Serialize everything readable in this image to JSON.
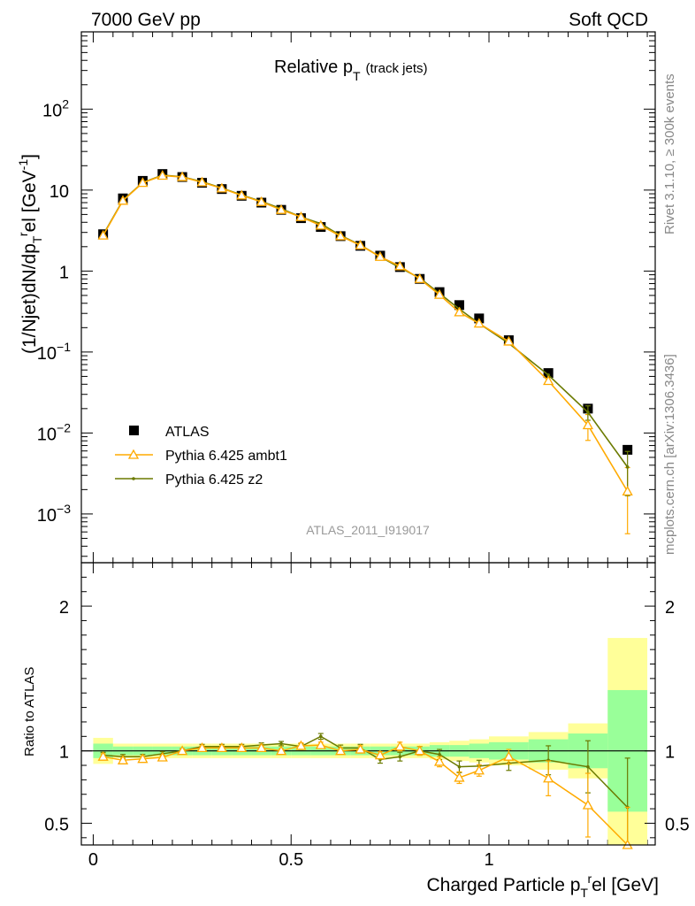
{
  "header": {
    "left": "7000 GeV pp",
    "right": "Soft QCD"
  },
  "side_labels": {
    "rivet": "Rivet 3.1.10, ≥ 300k events",
    "source": "mcplots.cern.ch [arXiv:1306.3436]"
  },
  "chart_data": {
    "type": "line",
    "title": "Relative p_T (track jets)",
    "title_main": "Relative p",
    "title_sub": "T",
    "title_suffix": "(track jets)",
    "watermark": "ATLAS_2011_I919017",
    "xlabel": "Charged Particle p_T^rel [GeV]",
    "xlabel_main": "Charged Particle p",
    "xlabel_sub": "T",
    "xlabel_sup": "r",
    "xlabel_suffix": "el [GeV]",
    "ylabel": "(1/Njet)dN/dp_T^rel [GeV^-1]",
    "ylabel_main": "(1/Njet)dN/dp",
    "ylabel_sub": "T",
    "ylabel_sup": "r",
    "ylabel_suffix": "el [GeV",
    "ylabel_unit_sup": "-1",
    "ylabel_close": "]",
    "ratio_ylabel": "Ratio to ATLAS",
    "xlim": [
      -0.03,
      1.42
    ],
    "ylim_log": [
      0.00025,
      900
    ],
    "ratio_ylim": [
      0.35,
      2.3
    ],
    "x_ticks": [
      {
        "v": 0,
        "label": "0"
      },
      {
        "v": 0.5,
        "label": "0.5"
      },
      {
        "v": 1,
        "label": "1"
      }
    ],
    "y_ticks": [
      {
        "v": 0.001,
        "base": "10",
        "exp": "−3"
      },
      {
        "v": 0.01,
        "base": "10",
        "exp": "−2"
      },
      {
        "v": 0.1,
        "base": "10",
        "exp": "−1"
      },
      {
        "v": 1,
        "base": "1",
        "exp": ""
      },
      {
        "v": 10,
        "base": "10",
        "exp": ""
      },
      {
        "v": 100,
        "base": "10",
        "exp": "2"
      }
    ],
    "ratio_y_ticks": [
      {
        "v": 0.5,
        "label": "0.5"
      },
      {
        "v": 1,
        "label": "1"
      },
      {
        "v": 2,
        "label": "2"
      }
    ],
    "x": [
      0.025,
      0.075,
      0.125,
      0.175,
      0.225,
      0.275,
      0.325,
      0.375,
      0.425,
      0.475,
      0.525,
      0.575,
      0.625,
      0.675,
      0.725,
      0.775,
      0.825,
      0.875,
      0.925,
      0.975,
      1.05,
      1.15,
      1.25,
      1.35
    ],
    "x_edges": [
      0.0,
      0.05,
      0.1,
      0.15,
      0.2,
      0.25,
      0.3,
      0.35,
      0.4,
      0.45,
      0.5,
      0.55,
      0.6,
      0.65,
      0.7,
      0.75,
      0.8,
      0.85,
      0.9,
      0.95,
      1.0,
      1.1,
      1.2,
      1.3,
      1.4
    ],
    "series": [
      {
        "name": "ATLAS",
        "color": "#000000",
        "values": [
          2.85,
          7.9,
          13.0,
          15.8,
          14.5,
          12.3,
          10.3,
          8.5,
          7.0,
          5.7,
          4.5,
          3.5,
          2.7,
          2.05,
          1.55,
          1.12,
          0.8,
          0.55,
          0.38,
          0.26,
          0.14,
          0.055,
          0.02,
          0.0062
        ],
        "band_inner": [
          0.05,
          0.03,
          0.03,
          0.03,
          0.03,
          0.03,
          0.03,
          0.03,
          0.03,
          0.03,
          0.03,
          0.03,
          0.03,
          0.03,
          0.03,
          0.03,
          0.03,
          0.04,
          0.04,
          0.05,
          0.06,
          0.08,
          0.12,
          0.42
        ],
        "band_outer": [
          0.09,
          0.05,
          0.05,
          0.05,
          0.05,
          0.05,
          0.05,
          0.05,
          0.05,
          0.05,
          0.05,
          0.05,
          0.05,
          0.05,
          0.05,
          0.05,
          0.05,
          0.06,
          0.07,
          0.08,
          0.1,
          0.13,
          0.19,
          0.78
        ]
      },
      {
        "name": "Pythia 6.425 ambt1",
        "color": "#ffaa00",
        "marker": "open-triangle",
        "values": [
          2.75,
          7.4,
          12.3,
          15.1,
          14.5,
          12.5,
          10.5,
          8.6,
          7.15,
          5.7,
          4.65,
          3.65,
          2.7,
          2.08,
          1.5,
          1.15,
          0.8,
          0.51,
          0.31,
          0.225,
          0.135,
          0.044,
          0.0125,
          0.0019
        ],
        "ratio": [
          0.96,
          0.935,
          0.945,
          0.955,
          1.0,
          1.02,
          1.02,
          1.02,
          1.02,
          1.0,
          1.035,
          1.04,
          1.0,
          1.01,
          0.97,
          1.03,
          1.0,
          0.925,
          0.815,
          0.865,
          0.96,
          0.81,
          0.625,
          0.31
        ],
        "ratio_err": [
          0.02,
          0.015,
          0.015,
          0.015,
          0.015,
          0.015,
          0.015,
          0.015,
          0.015,
          0.015,
          0.02,
          0.02,
          0.02,
          0.025,
          0.025,
          0.03,
          0.03,
          0.035,
          0.04,
          0.04,
          0.05,
          0.12,
          0.22,
          0.3
        ]
      },
      {
        "name": "Pythia 6.425 z2",
        "color": "#6b7a00",
        "marker": "dot",
        "values": [
          2.8,
          7.5,
          12.4,
          15.3,
          14.6,
          12.7,
          10.6,
          8.7,
          7.25,
          5.9,
          4.65,
          3.85,
          2.75,
          2.1,
          1.5,
          1.1,
          0.82,
          0.53,
          0.34,
          0.225,
          0.128,
          0.052,
          0.018,
          0.0038
        ],
        "ratio": [
          0.97,
          0.96,
          0.96,
          0.98,
          1.0,
          1.03,
          1.03,
          1.03,
          1.04,
          1.05,
          1.03,
          1.1,
          1.02,
          1.02,
          0.94,
          0.96,
          1.0,
          0.975,
          0.89,
          0.895,
          0.915,
          0.935,
          0.89,
          0.61
        ],
        "ratio_err": [
          0.02,
          0.015,
          0.015,
          0.015,
          0.015,
          0.015,
          0.015,
          0.015,
          0.015,
          0.015,
          0.02,
          0.02,
          0.02,
          0.025,
          0.025,
          0.03,
          0.03,
          0.035,
          0.04,
          0.04,
          0.05,
          0.1,
          0.18,
          0.34
        ]
      }
    ],
    "legend": {
      "position": "bottom-left",
      "entries": [
        "ATLAS",
        "Pythia 6.425 ambt1",
        "Pythia 6.425 z2"
      ]
    },
    "band_colors": {
      "inner": "#99ff99",
      "outer": "#ffff99"
    },
    "grid": false
  }
}
